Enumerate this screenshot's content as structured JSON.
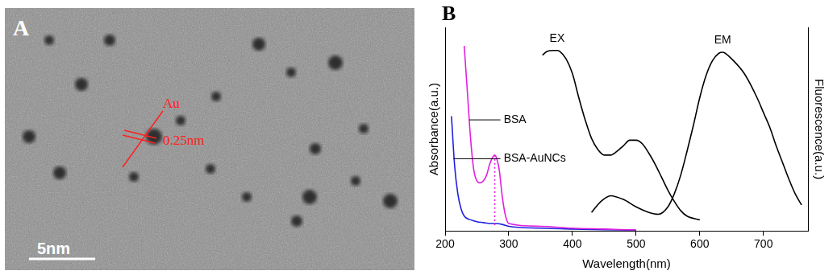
{
  "micrograph": {
    "panel": "A",
    "annotation": "Au",
    "lattice_spacing": "0.25nm",
    "scale_bar": "5nm"
  },
  "chart_data": {
    "panel": "B",
    "type": "line",
    "x_label": "Wavelength(nm)",
    "y_label": "Absorbance(a.u.)",
    "y2_label": "Fluorescence(a.u.)",
    "xlim": [
      200,
      770
    ],
    "xticks": [
      200,
      300,
      400,
      500,
      600,
      700
    ],
    "ylim": [
      0,
      1.1
    ],
    "y2lim": [
      0,
      1.1
    ],
    "tick_labels": "x",
    "grid": false,
    "series": [
      {
        "name": "BSA",
        "color": "#e020e0",
        "line_style": "solid",
        "label_at": [
          292,
          0.6
        ],
        "leader_from": 238,
        "x": [
          230,
          235,
          240,
          245,
          250,
          255,
          260,
          265,
          270,
          275,
          278,
          282,
          285,
          290,
          295,
          300,
          350,
          400,
          450,
          500
        ],
        "values": [
          1.0,
          0.75,
          0.5,
          0.33,
          0.27,
          0.26,
          0.27,
          0.3,
          0.36,
          0.4,
          0.41,
          0.38,
          0.33,
          0.18,
          0.08,
          0.04,
          0.025,
          0.015,
          0.01,
          0.005
        ]
      },
      {
        "color": "#e020e0",
        "line_style": "dotted",
        "x": [
          278,
          278
        ],
        "values": [
          0.41,
          0.03
        ]
      },
      {
        "name": "BSA-AuNCs",
        "color": "#2020e0",
        "line_style": "solid",
        "label_at": [
          292,
          0.39
        ],
        "leader_from": 213,
        "x": [
          210,
          215,
          220,
          225,
          230,
          240,
          250,
          260,
          270,
          280,
          290,
          300,
          350,
          400,
          450,
          500
        ],
        "values": [
          0.62,
          0.35,
          0.2,
          0.12,
          0.08,
          0.06,
          0.05,
          0.045,
          0.04,
          0.04,
          0.035,
          0.025,
          0.015,
          0.01,
          0.007,
          0.004
        ]
      },
      {
        "name": "EX",
        "color": "#000000",
        "line_style": "solid",
        "axis": "y2",
        "label_at": [
          376,
          1.0
        ],
        "x": [
          353,
          360,
          370,
          376,
          380,
          390,
          400,
          410,
          420,
          430,
          440,
          450,
          460,
          470,
          480,
          490,
          500,
          510,
          520,
          530,
          540,
          550,
          560,
          570,
          580,
          600
        ],
        "values": [
          0.95,
          0.97,
          0.975,
          0.975,
          0.97,
          0.93,
          0.85,
          0.72,
          0.6,
          0.5,
          0.44,
          0.41,
          0.41,
          0.43,
          0.46,
          0.49,
          0.49,
          0.47,
          0.42,
          0.36,
          0.29,
          0.22,
          0.16,
          0.11,
          0.08,
          0.06
        ]
      },
      {
        "name": "EM",
        "color": "#000000",
        "line_style": "solid",
        "axis": "y2",
        "label_at": [
          636,
          0.99
        ],
        "x": [
          430,
          445,
          460,
          480,
          500,
          520,
          535,
          550,
          560,
          570,
          580,
          590,
          600,
          610,
          620,
          630,
          636,
          640,
          650,
          670,
          690,
          700,
          710,
          720,
          730,
          740,
          750,
          760
        ],
        "values": [
          0.1,
          0.16,
          0.19,
          0.17,
          0.13,
          0.1,
          0.09,
          0.13,
          0.2,
          0.3,
          0.43,
          0.57,
          0.72,
          0.84,
          0.92,
          0.96,
          0.965,
          0.96,
          0.93,
          0.85,
          0.72,
          0.64,
          0.56,
          0.46,
          0.37,
          0.28,
          0.2,
          0.14
        ]
      }
    ]
  }
}
